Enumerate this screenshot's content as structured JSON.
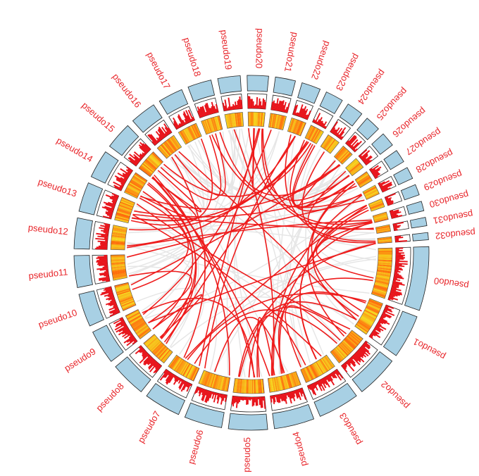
{
  "segments": [
    "pseudo0",
    "pseudo1",
    "pseudo2",
    "pseudo3",
    "pseudo4",
    "pseudo5",
    "pseudo6",
    "pseudo7",
    "pseudo8",
    "pseudo9",
    "pseudo10",
    "pseudo11",
    "pseudo12",
    "pseudo13",
    "pseudo14",
    "pseudo15",
    "pseudo16",
    "pseudo17",
    "pseudo18",
    "pseudo19",
    "pseudo20",
    "pseudo21",
    "pseudo22",
    "pseudo23",
    "pseudo24",
    "pseudo25",
    "pseudo26",
    "pseudo27",
    "pseudo28",
    "pseudo29",
    "pseudo30",
    "pseudo31",
    "pseudo32"
  ]
}
